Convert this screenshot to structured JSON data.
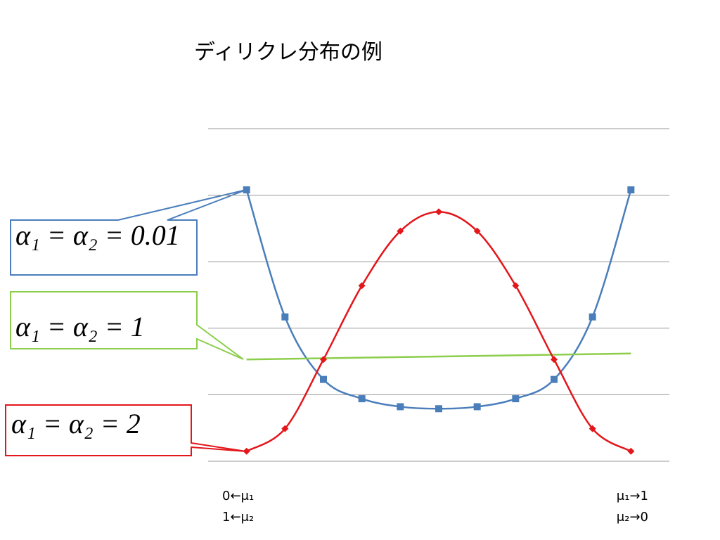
{
  "chart_data": {
    "type": "line",
    "title": "ディリクレ分布の例",
    "x": [
      0,
      0.1,
      0.2,
      0.3,
      0.4,
      0.5,
      0.6,
      0.7,
      0.8,
      0.9,
      1
    ],
    "xlim": [
      -0.1,
      1.1
    ],
    "ylim": [
      0,
      5
    ],
    "grid_lines": [
      0,
      1,
      2,
      3,
      4,
      5
    ],
    "smooth": true,
    "series": [
      {
        "name": "α₁ = α₂ = 0.01",
        "color": "#4a7ebb",
        "marker": "square",
        "values": [
          4.08,
          2.17,
          1.23,
          0.94,
          0.82,
          0.79,
          0.82,
          0.94,
          1.23,
          2.17,
          4.08
        ]
      },
      {
        "name": "α₁ = α₂ = 1",
        "color": "#8cce4b",
        "marker": "none",
        "x": [
          0,
          1
        ],
        "values": [
          1.53,
          1.62
        ]
      },
      {
        "name": "α₁ = α₂ = 2",
        "color": "#e3161b",
        "marker": "diamond",
        "values": [
          0.15,
          0.49,
          1.53,
          2.64,
          3.46,
          3.75,
          3.46,
          2.64,
          1.53,
          0.49,
          0.15
        ]
      }
    ],
    "axis_labels": {
      "left": [
        "0←μ₁",
        "1←μ₂"
      ],
      "right": [
        "μ₁→1",
        "μ₂→0"
      ]
    }
  }
}
